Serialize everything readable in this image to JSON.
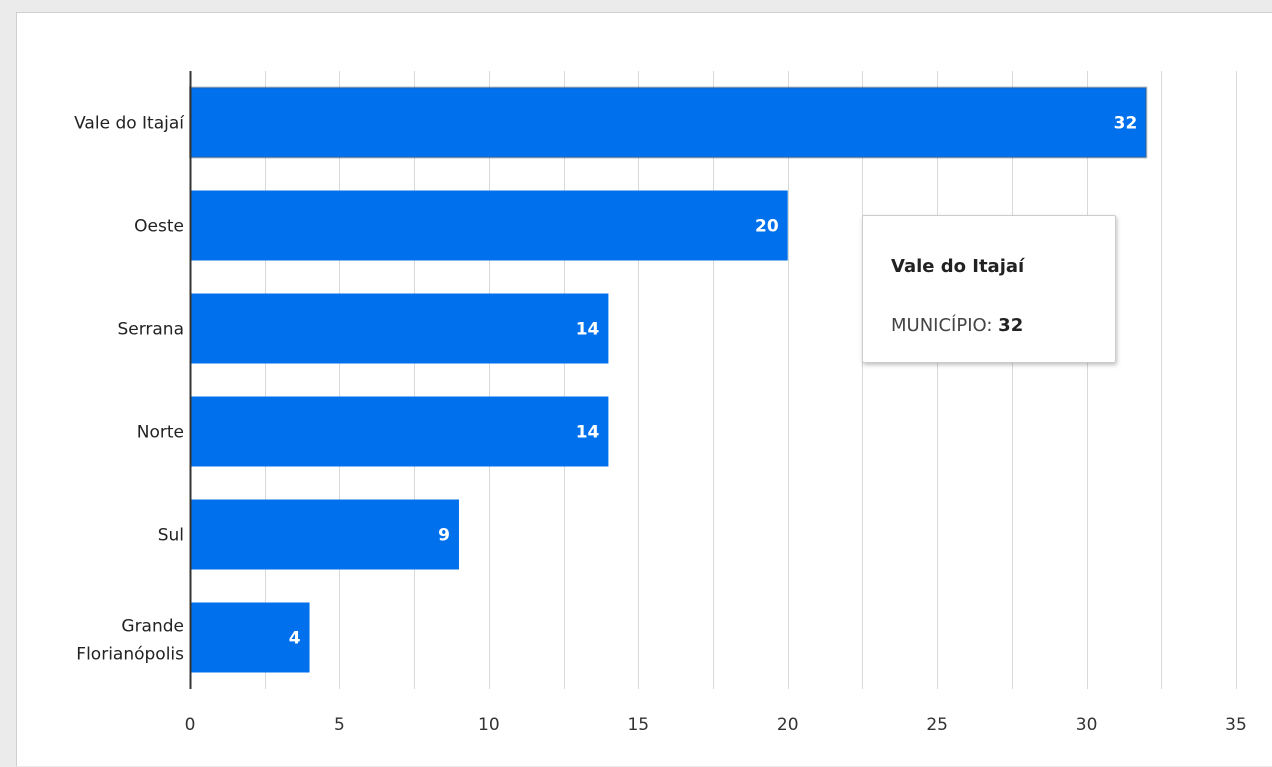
{
  "chart_data": {
    "type": "bar",
    "orientation": "horizontal",
    "categories": [
      "Vale do Itajaí",
      "Oeste",
      "Serrana",
      "Norte",
      "Sul",
      "Grande Florianópolis"
    ],
    "values": [
      32,
      20,
      14,
      14,
      9,
      4
    ],
    "xlim": [
      0,
      35
    ],
    "x_ticks": [
      "0",
      "5",
      "10",
      "15",
      "20",
      "25",
      "30",
      "35"
    ],
    "grid": true,
    "bar_color": "#0070ed",
    "show_data_labels": true,
    "highlighted_category": "Vale do Itajaí"
  },
  "tooltip": {
    "title": "Vale do Itajaí",
    "series_label": "MUNICÍPIO:",
    "value": "32"
  }
}
